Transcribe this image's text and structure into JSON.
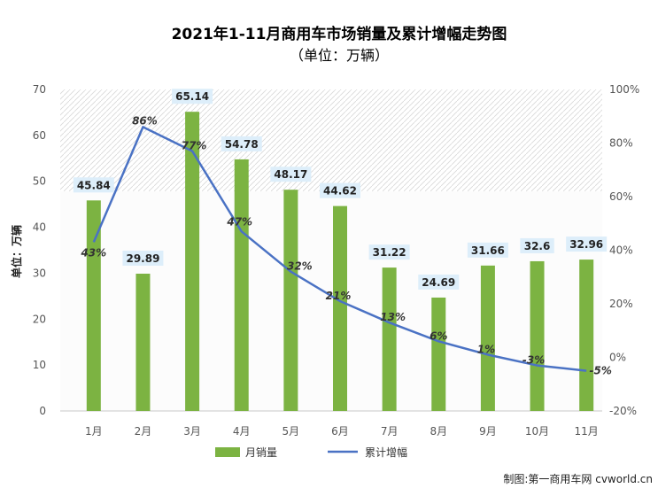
{
  "chart_data": {
    "type": "bar",
    "title": "2021年1-11月商用车市场销量及累计增幅走势图",
    "subtitle": "（单位：万辆）",
    "categories": [
      "1月",
      "2月",
      "3月",
      "4月",
      "5月",
      "6月",
      "7月",
      "8月",
      "9月",
      "10月",
      "11月"
    ],
    "series": [
      {
        "name": "月销量",
        "type": "bar",
        "axis": "left",
        "color": "#7cb342",
        "values": [
          45.84,
          29.89,
          65.14,
          54.78,
          48.17,
          44.62,
          31.22,
          24.69,
          31.66,
          32.6,
          32.96
        ],
        "labels": [
          "45.84",
          "29.89",
          "65.14",
          "54.78",
          "48.17",
          "44.62",
          "31.22",
          "24.69",
          "31.66",
          "32.6",
          "32.96"
        ]
      },
      {
        "name": "累计增幅",
        "type": "line",
        "axis": "right",
        "color": "#4a72c4",
        "values": [
          43,
          86,
          77,
          47,
          32,
          21,
          13,
          6,
          1,
          -3,
          -5
        ],
        "labels": [
          "43%",
          "86%",
          "77%",
          "47%",
          "32%",
          "21%",
          "13%",
          "6%",
          "1%",
          "-3%",
          "-5%"
        ]
      }
    ],
    "ylabel": "单位：万辆",
    "ylim": [
      0,
      70
    ],
    "yticks": [
      "0",
      "10",
      "20",
      "30",
      "40",
      "50",
      "60",
      "70"
    ],
    "y2lim": [
      -20,
      100
    ],
    "y2ticks": [
      "-20%",
      "0%",
      "20%",
      "40%",
      "60%",
      "80%",
      "100%"
    ],
    "grid": false,
    "legend_position": "bottom",
    "source": "制图:第一商用车网 cvworld.cn"
  }
}
